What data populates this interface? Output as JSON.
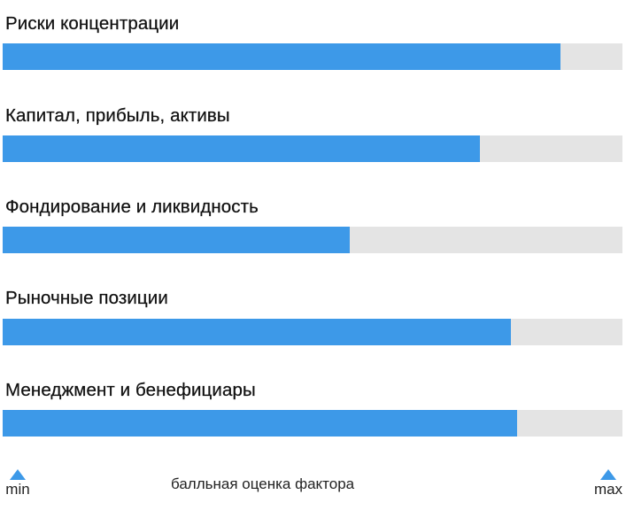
{
  "chart_data": {
    "type": "bar",
    "orientation": "horizontal",
    "title": "",
    "xlabel": "балльная оценка фактора",
    "ylabel": "",
    "axis_min_label": "min",
    "axis_max_label": "max",
    "xlim": [
      0,
      100
    ],
    "grid": false,
    "legend": null,
    "categories": [
      "Риски концентрации",
      "Капитал, прибыль, активы",
      "Фондирование и ликвидность",
      "Рыночные позиции",
      "Менеджмент и бенефициары"
    ],
    "values": [
      90,
      77,
      56,
      82,
      83
    ],
    "colors": {
      "fill": "#3d99e8",
      "track": "#e4e4e4"
    }
  },
  "factors": [
    {
      "label": "Риски концентрации",
      "value": 90
    },
    {
      "label": "Капитал, прибыль, активы",
      "value": 77
    },
    {
      "label": "Фондирование и ликвидность",
      "value": 56
    },
    {
      "label": "Рыночные позиции",
      "value": 82
    },
    {
      "label": "Менеджмент и бенефициары",
      "value": 83
    }
  ],
  "footer": {
    "caption": "балльная оценка фактора",
    "min_label": "min",
    "max_label": "max"
  }
}
